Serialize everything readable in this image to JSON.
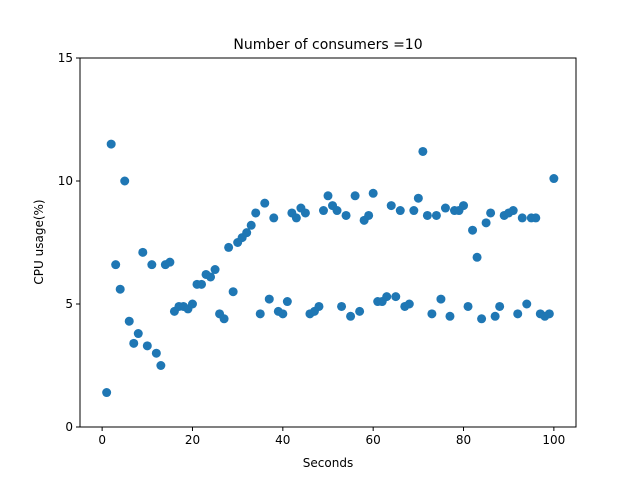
{
  "chart_data": {
    "type": "scatter",
    "title": "Number of consumers =10",
    "xlabel": "Seconds",
    "ylabel": "CPU usage(%)",
    "xlim": [
      -4.9,
      104.9
    ],
    "ylim": [
      0,
      15
    ],
    "xticks": [
      0,
      20,
      40,
      60,
      80,
      100
    ],
    "yticks": [
      0,
      5,
      10,
      15
    ],
    "grid": false,
    "marker_color": "#1f77b4",
    "points": [
      [
        1,
        1.4
      ],
      [
        2,
        11.5
      ],
      [
        3,
        6.6
      ],
      [
        4,
        5.6
      ],
      [
        5,
        10.0
      ],
      [
        6,
        4.3
      ],
      [
        7,
        3.4
      ],
      [
        8,
        3.8
      ],
      [
        9,
        7.1
      ],
      [
        10,
        3.3
      ],
      [
        11,
        6.6
      ],
      [
        12,
        3.0
      ],
      [
        13,
        2.5
      ],
      [
        14,
        6.6
      ],
      [
        15,
        6.7
      ],
      [
        16,
        4.7
      ],
      [
        17,
        4.9
      ],
      [
        18,
        4.9
      ],
      [
        19,
        4.8
      ],
      [
        20,
        5.0
      ],
      [
        21,
        5.8
      ],
      [
        22,
        5.8
      ],
      [
        23,
        6.2
      ],
      [
        24,
        6.1
      ],
      [
        25,
        6.4
      ],
      [
        26,
        4.6
      ],
      [
        27,
        4.4
      ],
      [
        28,
        7.3
      ],
      [
        29,
        5.5
      ],
      [
        30,
        7.5
      ],
      [
        31,
        7.7
      ],
      [
        32,
        7.9
      ],
      [
        33,
        8.2
      ],
      [
        34,
        8.7
      ],
      [
        35,
        4.6
      ],
      [
        36,
        9.1
      ],
      [
        37,
        5.2
      ],
      [
        38,
        8.5
      ],
      [
        39,
        4.7
      ],
      [
        40,
        4.6
      ],
      [
        41,
        5.1
      ],
      [
        42,
        8.7
      ],
      [
        43,
        8.5
      ],
      [
        44,
        8.9
      ],
      [
        45,
        8.7
      ],
      [
        46,
        4.6
      ],
      [
        47,
        4.7
      ],
      [
        48,
        4.9
      ],
      [
        49,
        8.8
      ],
      [
        50,
        9.4
      ],
      [
        51,
        9.0
      ],
      [
        52,
        8.8
      ],
      [
        53,
        4.9
      ],
      [
        54,
        8.6
      ],
      [
        55,
        4.5
      ],
      [
        56,
        9.4
      ],
      [
        57,
        4.7
      ],
      [
        58,
        8.4
      ],
      [
        59,
        8.6
      ],
      [
        60,
        9.5
      ],
      [
        61,
        5.1
      ],
      [
        62,
        5.1
      ],
      [
        63,
        5.3
      ],
      [
        64,
        9.0
      ],
      [
        65,
        5.3
      ],
      [
        66,
        8.8
      ],
      [
        67,
        4.9
      ],
      [
        68,
        5.0
      ],
      [
        69,
        8.8
      ],
      [
        70,
        9.3
      ],
      [
        71,
        11.2
      ],
      [
        72,
        8.6
      ],
      [
        73,
        4.6
      ],
      [
        74,
        8.6
      ],
      [
        75,
        5.2
      ],
      [
        76,
        8.9
      ],
      [
        77,
        4.5
      ],
      [
        78,
        8.8
      ],
      [
        79,
        8.8
      ],
      [
        80,
        9.0
      ],
      [
        81,
        4.9
      ],
      [
        82,
        8.0
      ],
      [
        83,
        6.9
      ],
      [
        84,
        4.4
      ],
      [
        85,
        8.3
      ],
      [
        86,
        8.7
      ],
      [
        87,
        4.5
      ],
      [
        88,
        4.9
      ],
      [
        89,
        8.6
      ],
      [
        90,
        8.7
      ],
      [
        91,
        8.8
      ],
      [
        92,
        4.6
      ],
      [
        93,
        8.5
      ],
      [
        94,
        5.0
      ],
      [
        95,
        8.5
      ],
      [
        96,
        8.5
      ],
      [
        97,
        4.6
      ],
      [
        98,
        4.5
      ],
      [
        99,
        4.6
      ],
      [
        100,
        10.1
      ]
    ]
  }
}
